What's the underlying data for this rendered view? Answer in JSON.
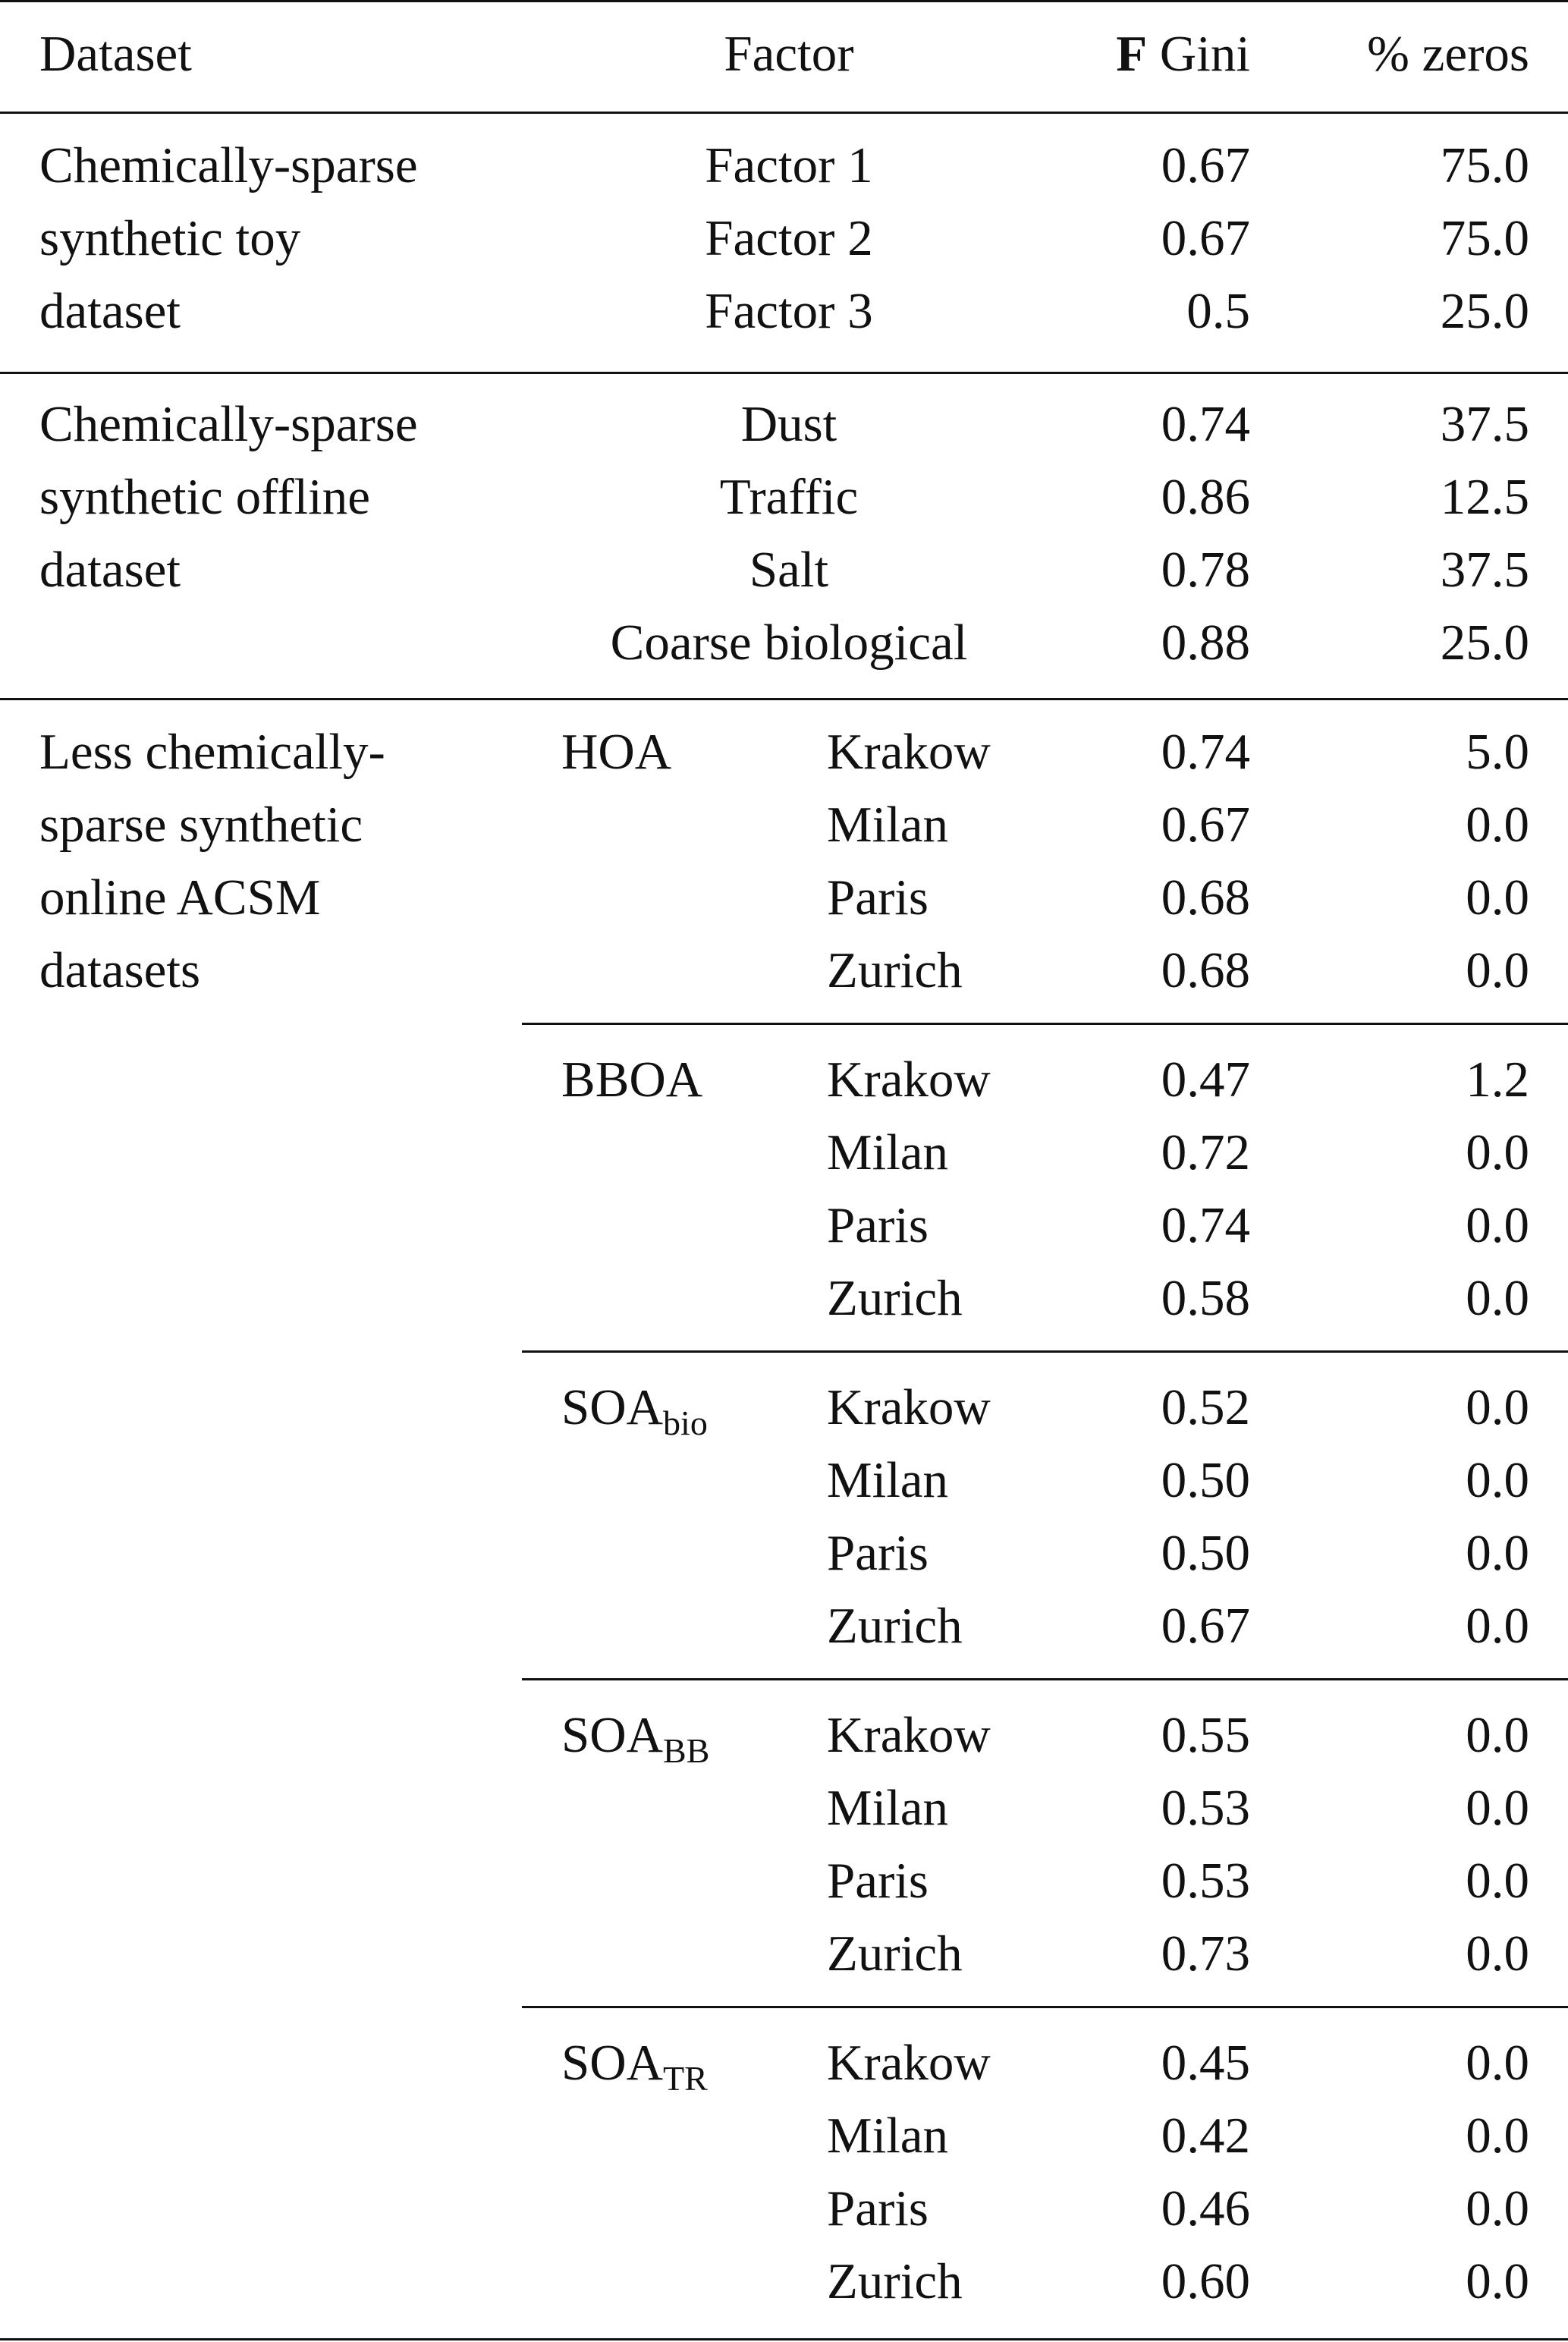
{
  "headers": {
    "dataset": "Dataset",
    "factor": "Factor",
    "f_bold": "F",
    "gini": " Gini",
    "zeros": "% zeros"
  },
  "group1": {
    "dataset_lines": [
      "Chemically-sparse",
      "synthetic toy",
      "dataset"
    ],
    "rows": [
      {
        "factor": "Factor 1",
        "gini": "0.67",
        "zeros": "75.0"
      },
      {
        "factor": "Factor 2",
        "gini": "0.67",
        "zeros": "75.0"
      },
      {
        "factor": "Factor 3",
        "gini": "0.5",
        "zeros": "25.0"
      }
    ]
  },
  "group2": {
    "dataset_lines": [
      "Chemically-sparse",
      "synthetic offline",
      "dataset"
    ],
    "rows": [
      {
        "factor": "Dust",
        "gini": "0.74",
        "zeros": "37.5"
      },
      {
        "factor": "Traffic",
        "gini": "0.86",
        "zeros": "12.5"
      },
      {
        "factor": "Salt",
        "gini": "0.78",
        "zeros": "37.5"
      },
      {
        "factor": "Coarse biological",
        "gini": "0.88",
        "zeros": "25.0"
      }
    ]
  },
  "group3": {
    "dataset_lines": [
      "Less chemically-",
      "sparse synthetic",
      "online ACSM",
      "datasets"
    ],
    "factors": [
      {
        "name": "HOA",
        "sub": "",
        "rows": [
          {
            "site": "Krakow",
            "gini": "0.74",
            "zeros": "5.0"
          },
          {
            "site": "Milan",
            "gini": "0.67",
            "zeros": "0.0"
          },
          {
            "site": "Paris",
            "gini": "0.68",
            "zeros": "0.0"
          },
          {
            "site": "Zurich",
            "gini": "0.68",
            "zeros": "0.0"
          }
        ]
      },
      {
        "name": "BBOA",
        "sub": "",
        "rows": [
          {
            "site": "Krakow",
            "gini": "0.47",
            "zeros": "1.2"
          },
          {
            "site": "Milan",
            "gini": "0.72",
            "zeros": "0.0"
          },
          {
            "site": "Paris",
            "gini": "0.74",
            "zeros": "0.0"
          },
          {
            "site": "Zurich",
            "gini": "0.58",
            "zeros": "0.0"
          }
        ]
      },
      {
        "name": "SOA",
        "sub": "bio",
        "rows": [
          {
            "site": "Krakow",
            "gini": "0.52",
            "zeros": "0.0"
          },
          {
            "site": "Milan",
            "gini": "0.50",
            "zeros": "0.0"
          },
          {
            "site": "Paris",
            "gini": "0.50",
            "zeros": "0.0"
          },
          {
            "site": "Zurich",
            "gini": "0.67",
            "zeros": "0.0"
          }
        ]
      },
      {
        "name": "SOA",
        "sub": "BB",
        "rows": [
          {
            "site": "Krakow",
            "gini": "0.55",
            "zeros": "0.0"
          },
          {
            "site": "Milan",
            "gini": "0.53",
            "zeros": "0.0"
          },
          {
            "site": "Paris",
            "gini": "0.53",
            "zeros": "0.0"
          },
          {
            "site": "Zurich",
            "gini": "0.73",
            "zeros": "0.0"
          }
        ]
      },
      {
        "name": "SOA",
        "sub": "TR",
        "rows": [
          {
            "site": "Krakow",
            "gini": "0.45",
            "zeros": "0.0"
          },
          {
            "site": "Milan",
            "gini": "0.42",
            "zeros": "0.0"
          },
          {
            "site": "Paris",
            "gini": "0.46",
            "zeros": "0.0"
          },
          {
            "site": "Zurich",
            "gini": "0.60",
            "zeros": "0.0"
          }
        ]
      }
    ]
  }
}
